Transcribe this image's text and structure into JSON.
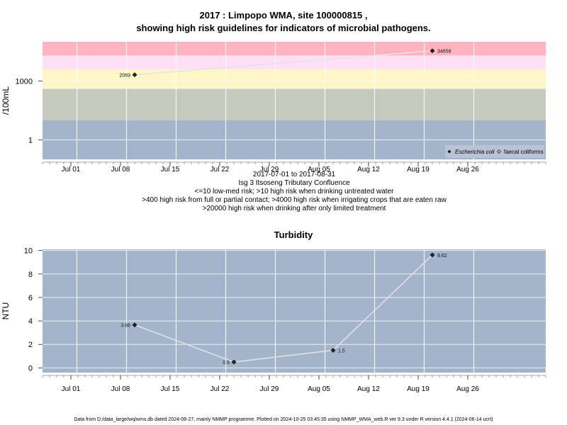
{
  "page": {
    "title_line1": "2017 : Limpopo WMA, site 100000815 ,",
    "title_line2": "showing high risk guidelines for indicators of microbial pathogens.",
    "caption_lines": [
      "2017-07-01 to 2017-08-31",
      "Isg 3 Itsoseng Tributary Confluence",
      "<=10 low-med risk; >10 high risk when drinking untreated water",
      ">400 high risk from full or partial contact; >4000 high risk when irrigating crops that are eaten raw",
      ">20000 high risk when drinking after only limited treatment"
    ],
    "footer": "Data from D:/data_large/wq/wms.db dated 2024-08-27, mainly NMMP programme. Plotted on 2024-10-25 03:45:35 using NMMP_WMA_web.R ver 9.3 under R version 4.4.1 (2024-06-14 ucrt)"
  },
  "colors": {
    "band_low": "#a4b4cb",
    "band_10_400": "#c4cbbe",
    "band_400_4000": "#fff6c8",
    "band_4000_20000": "#ffdff5",
    "band_high": "#ffb4c0",
    "panel_bg": "#a4b4cb",
    "line": "#e3e3e6",
    "point": "#222222",
    "grid": "#ffffff"
  },
  "chart_data": [
    {
      "type": "line",
      "title": "",
      "xlabel": "",
      "ylabel": "/100mL",
      "x_ticks": [
        "Jul 01",
        "Jul 08",
        "Jul 15",
        "Jul 22",
        "Jul 29",
        "Aug 05",
        "Aug 12",
        "Aug 19",
        "Aug 26"
      ],
      "x_tick_dates": [
        "2017-07-01",
        "2017-07-08",
        "2017-07-15",
        "2017-07-22",
        "2017-07-29",
        "2017-08-05",
        "2017-08-12",
        "2017-08-19",
        "2017-08-26"
      ],
      "xlim": [
        "2017-06-27",
        "2017-09-06"
      ],
      "y_scale": "log10",
      "ylim": [
        0.1,
        100000
      ],
      "y_ticks": [
        1,
        1000
      ],
      "y_tick_labels": [
        "1",
        "1000"
      ],
      "risk_bands": [
        {
          "from": 0.1,
          "to": 10,
          "color_key": "band_low"
        },
        {
          "from": 10,
          "to": 400,
          "color_key": "band_10_400"
        },
        {
          "from": 400,
          "to": 4000,
          "color_key": "band_400_4000"
        },
        {
          "from": 4000,
          "to": 20000,
          "color_key": "band_4000_20000"
        },
        {
          "from": 20000,
          "to": 100000,
          "color_key": "band_high"
        }
      ],
      "series": [
        {
          "name": "Escherichia coli",
          "x": [
            "2017-07-10",
            "2017-08-21"
          ],
          "values": [
            2069,
            34658
          ],
          "labels": [
            "2069",
            "34658"
          ],
          "label_side": [
            "left",
            "right"
          ]
        }
      ],
      "legend": {
        "position": "bottom-right",
        "entries": [
          {
            "label": "Escherichia coli",
            "marker": "filled-diamond",
            "italic": true
          },
          {
            "label": "faecal coliforms",
            "marker": "open-diamond",
            "italic": false
          }
        ]
      },
      "grid": true
    },
    {
      "type": "line",
      "title": "Turbidity",
      "xlabel": "",
      "ylabel": "NTU",
      "x_ticks": [
        "Jul 01",
        "Jul 08",
        "Jul 15",
        "Jul 22",
        "Jul 29",
        "Aug 05",
        "Aug 12",
        "Aug 19",
        "Aug 26"
      ],
      "x_tick_dates": [
        "2017-07-01",
        "2017-07-08",
        "2017-07-15",
        "2017-07-22",
        "2017-07-29",
        "2017-08-05",
        "2017-08-12",
        "2017-08-19",
        "2017-08-26"
      ],
      "xlim": [
        "2017-06-27",
        "2017-09-06"
      ],
      "y_scale": "linear",
      "ylim": [
        -0.4,
        10.1
      ],
      "y_ticks": [
        0,
        2,
        4,
        6,
        8,
        10
      ],
      "y_tick_labels": [
        "0",
        "2",
        "4",
        "6",
        "8",
        "10"
      ],
      "series": [
        {
          "name": "",
          "x": [
            "2017-07-10",
            "2017-07-24",
            "2017-08-07",
            "2017-08-21"
          ],
          "values": [
            3.66,
            0.5,
            1.5,
            9.62
          ],
          "labels": [
            "3.66",
            "0.5",
            "1.5",
            "9.62"
          ],
          "label_side": [
            "left",
            "left",
            "right",
            "right"
          ]
        }
      ],
      "grid": true
    }
  ]
}
